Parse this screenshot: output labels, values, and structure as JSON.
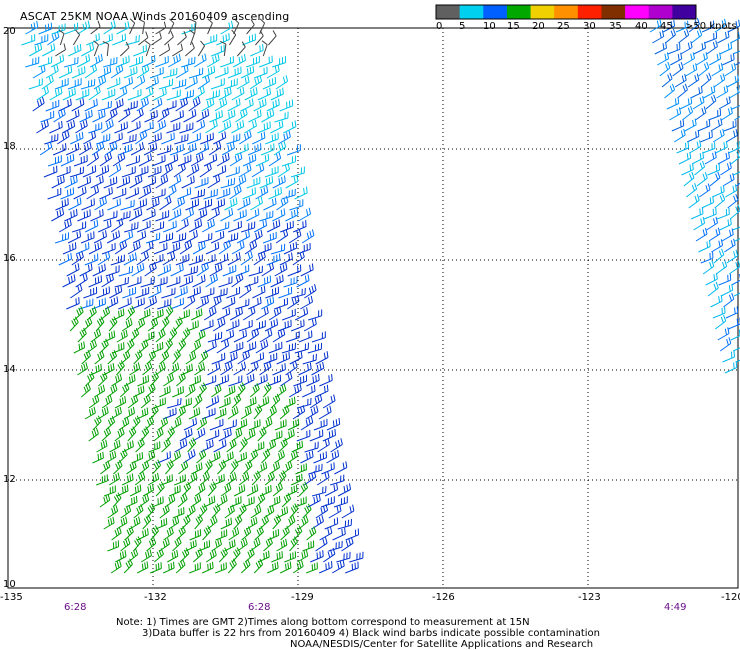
{
  "title": "ASCAT 25KM NOAA Winds 20160409 ascending",
  "legend": {
    "labels": [
      "0",
      "5",
      "10",
      "15",
      "20",
      "25",
      "30",
      "35",
      "40",
      "45",
      ">50 knots"
    ],
    "colors": [
      "#606060",
      "#00d0f0",
      "#0060ff",
      "#00a800",
      "#f0d000",
      "#ff9000",
      "#ff2000",
      "#803000",
      "#ff00ff",
      "#b000d0",
      "#4000a0"
    ]
  },
  "axes": {
    "lat_labels": [
      "20",
      "18",
      "16",
      "14",
      "12",
      "10"
    ],
    "lon_labels": [
      "-135",
      "-132",
      "-129",
      "-126",
      "-123",
      "-120"
    ]
  },
  "time_labels": [
    "6:28",
    "6:28",
    "4:49"
  ],
  "notes": [
    "Note: 1) Times are GMT 2)Times along bottom correspond to measurement at 15N",
    "3)Data buffer is 22 hrs from 20160409 4) Black wind barbs indicate possible contamination",
    "NOAA/NESDIS/Center for Satellite Applications and Research"
  ]
}
